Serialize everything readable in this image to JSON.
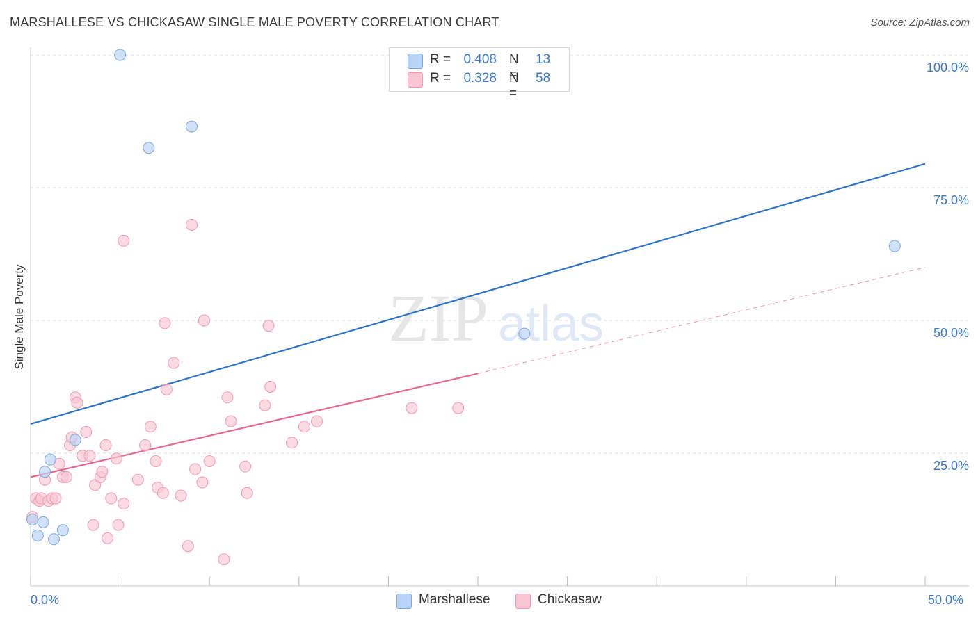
{
  "header": {
    "title": "MARSHALLESE VS CHICKASAW SINGLE MALE POVERTY CORRELATION CHART",
    "source": "Source: ZipAtlas.com"
  },
  "legend_top": {
    "rows": [
      {
        "r_label": "R =",
        "r_value": "0.408",
        "n_label": "N =",
        "n_value": "13"
      },
      {
        "r_label": "R =",
        "r_value": "0.328",
        "n_label": "N =",
        "n_value": "58"
      }
    ]
  },
  "legend_bottom": {
    "items": [
      "Marshallese",
      "Chickasaw"
    ]
  },
  "watermark": {
    "zip": "ZIP",
    "atlas": "atlas"
  },
  "colors": {
    "marshallese_fill": "#b8d3f5",
    "marshallese_stroke": "#7aa8e0",
    "marshallese_line": "#2f73c9",
    "chickasaw_fill": "#fac6d6",
    "chickasaw_stroke": "#ef9ab4",
    "chickasaw_line": "#e6688f",
    "accent_text": "#3b78c8",
    "grid": "#dddddd"
  },
  "chart_data": {
    "type": "scatter",
    "title": "MARSHALLESE VS CHICKASAW SINGLE MALE POVERTY CORRELATION CHART",
    "xlabel": "",
    "ylabel": "Single Male Poverty",
    "xlim": [
      0,
      50
    ],
    "ylim": [
      0,
      100
    ],
    "x_tick_labels": [
      "0.0%",
      "50.0%"
    ],
    "y_ticks": [
      25,
      50,
      75,
      100
    ],
    "y_tick_labels": [
      "25.0%",
      "50.0%",
      "75.0%",
      "100.0%"
    ],
    "grid": true,
    "legend_position": "bottom",
    "series": [
      {
        "name": "Marshallese",
        "r": 0.408,
        "n": 13,
        "points": [
          [
            0.1,
            12.5
          ],
          [
            0.4,
            9.5
          ],
          [
            0.7,
            12.0
          ],
          [
            0.8,
            21.5
          ],
          [
            1.1,
            23.8
          ],
          [
            1.3,
            8.8
          ],
          [
            1.8,
            10.5
          ],
          [
            2.5,
            27.5
          ],
          [
            5.0,
            100.0
          ],
          [
            6.6,
            82.5
          ],
          [
            9.0,
            86.5
          ],
          [
            27.6,
            47.5
          ],
          [
            48.3,
            64.0
          ]
        ],
        "trend": {
          "x0": 0,
          "y0": 30.5,
          "x1": 50,
          "y1": 79.5,
          "style": "solid"
        }
      },
      {
        "name": "Chickasaw",
        "r": 0.328,
        "n": 58,
        "points": [
          [
            0.1,
            13.0
          ],
          [
            0.3,
            16.5
          ],
          [
            0.5,
            16.0
          ],
          [
            0.6,
            16.5
          ],
          [
            0.8,
            20.0
          ],
          [
            1.0,
            16.0
          ],
          [
            1.2,
            16.5
          ],
          [
            1.4,
            16.5
          ],
          [
            1.6,
            23.0
          ],
          [
            1.8,
            20.5
          ],
          [
            2.0,
            20.5
          ],
          [
            2.2,
            26.5
          ],
          [
            2.3,
            28.0
          ],
          [
            2.5,
            35.5
          ],
          [
            2.6,
            34.5
          ],
          [
            2.9,
            24.5
          ],
          [
            3.1,
            29.0
          ],
          [
            3.3,
            24.5
          ],
          [
            3.5,
            11.5
          ],
          [
            3.6,
            19.0
          ],
          [
            3.9,
            20.5
          ],
          [
            4.0,
            21.5
          ],
          [
            4.2,
            26.5
          ],
          [
            4.3,
            9.0
          ],
          [
            4.5,
            16.5
          ],
          [
            4.8,
            24.0
          ],
          [
            4.9,
            11.5
          ],
          [
            5.2,
            15.5
          ],
          [
            5.2,
            65.0
          ],
          [
            6.0,
            20.0
          ],
          [
            6.4,
            26.5
          ],
          [
            6.7,
            30.0
          ],
          [
            7.0,
            23.5
          ],
          [
            7.1,
            18.5
          ],
          [
            7.4,
            17.5
          ],
          [
            7.5,
            49.5
          ],
          [
            7.6,
            37.0
          ],
          [
            8.0,
            42.0
          ],
          [
            8.4,
            17.0
          ],
          [
            8.8,
            7.5
          ],
          [
            9.0,
            68.0
          ],
          [
            9.2,
            22.0
          ],
          [
            9.6,
            19.5
          ],
          [
            9.7,
            50.0
          ],
          [
            10.0,
            23.5
          ],
          [
            10.8,
            5.0
          ],
          [
            11.0,
            35.5
          ],
          [
            11.2,
            31.0
          ],
          [
            12.0,
            22.5
          ],
          [
            12.1,
            17.5
          ],
          [
            13.1,
            34.0
          ],
          [
            13.3,
            49.0
          ],
          [
            13.4,
            37.5
          ],
          [
            14.6,
            27.0
          ],
          [
            15.3,
            30.0
          ],
          [
            16.0,
            31.0
          ],
          [
            21.3,
            33.5
          ],
          [
            23.9,
            33.5
          ]
        ],
        "trend": {
          "x0": 0,
          "y0": 20.5,
          "x1": 25,
          "y1": 40.0,
          "style": "solid"
        },
        "trend_extension": {
          "x0": 25,
          "y0": 40.0,
          "x1": 50,
          "y1": 60.0,
          "style": "dashed"
        }
      }
    ]
  }
}
